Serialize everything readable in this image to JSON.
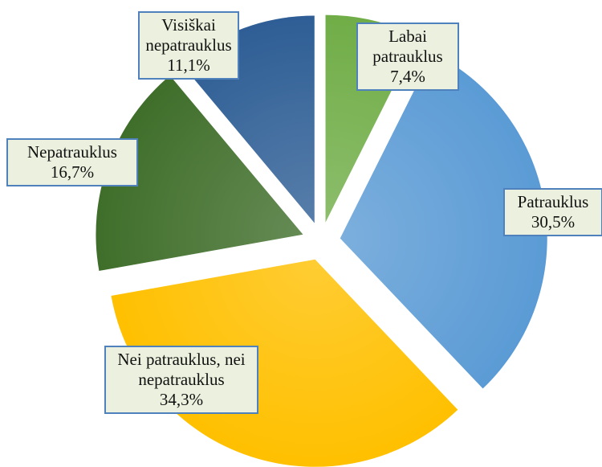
{
  "chart_data": {
    "type": "pie",
    "categories": [
      "Labai patrauklus",
      "Patrauklus",
      "Nei patrauklus, nei nepatrauklus",
      "Nepatrauklus",
      "Visiškai nepatrauklus"
    ],
    "values": [
      7.4,
      30.5,
      34.3,
      16.7,
      11.1
    ],
    "value_labels": [
      "7,4%",
      "30,5%",
      "34,3%",
      "16,7%",
      "11,1%"
    ],
    "colors": [
      "#70ad47",
      "#5b9bd5",
      "#ffc000",
      "#3f6e2a",
      "#2e5e95"
    ]
  }
}
